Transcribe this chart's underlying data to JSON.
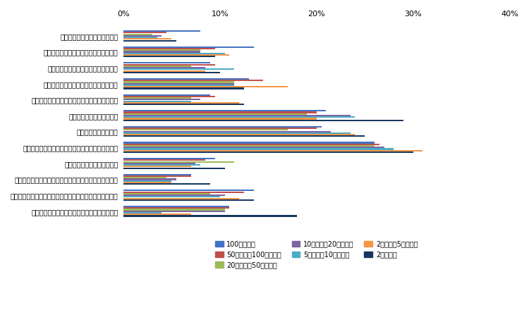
{
  "categories": [
    "助成金や補助金などの財源獲得",
    "モデル事業や国家戦略特区などへの採択",
    "事務・事業の再編・整理、廃止・統合",
    "民間委託の推進や指定管理者制度の活用",
    "業務の見直しや内部管理業務の効率化・集約化",
    "業務量に見合った人員配置",
    "専門人材の育成・配置",
    "公務外人材の活用（中途採用や兼業・副業の活用）",
    "地域住民や民間企業との連携",
    "業務のデジタル化（ペーパーレス化、クラウド化など）",
    "テクノロジーの活用（市販サービス・アプリの活用など）",
    "行政が取得している／取得できるデータの活用"
  ],
  "series": {
    "100万人以上": [
      8.0,
      13.5,
      9.0,
      13.0,
      9.0,
      21.0,
      20.5,
      26.0,
      9.5,
      7.0,
      13.5,
      11.0
    ],
    "50万人以上100万人未満": [
      4.5,
      9.5,
      9.5,
      14.5,
      9.5,
      20.0,
      20.0,
      26.5,
      8.5,
      7.0,
      12.5,
      11.0
    ],
    "20万人以上50万人未満": [
      3.0,
      8.0,
      7.0,
      11.5,
      7.0,
      19.0,
      17.0,
      26.0,
      11.5,
      4.5,
      9.0,
      10.5
    ],
    "10万人以上20万人未満": [
      4.0,
      8.0,
      8.5,
      11.5,
      8.0,
      23.5,
      21.5,
      27.0,
      7.5,
      5.5,
      10.5,
      10.5
    ],
    "5万人以上10万人未満": [
      3.5,
      10.5,
      11.5,
      11.5,
      7.0,
      24.0,
      23.5,
      28.0,
      8.0,
      5.0,
      10.0,
      4.0
    ],
    "2万人以上5万人未満": [
      5.0,
      11.0,
      8.5,
      17.0,
      12.0,
      20.0,
      24.0,
      31.0,
      7.0,
      5.0,
      12.0,
      7.0
    ],
    "2万人未満": [
      5.5,
      9.5,
      10.0,
      12.5,
      12.5,
      29.0,
      25.0,
      30.0,
      10.5,
      9.0,
      13.5,
      18.0
    ]
  },
  "colors": {
    "100万人以上": "#4472C4",
    "50万人以上100万人未満": "#C0504D",
    "20万人以上50万人未満": "#9BBB59",
    "10万人以上20万人未満": "#8064A2",
    "5万人以上10万人未満": "#4BACC6",
    "2万人以上5万人未満": "#F79646",
    "2万人未満": "#17375E"
  },
  "xlim": [
    0,
    40
  ],
  "xtick_labels": [
    "0%",
    "10%",
    "20%",
    "30%",
    "40%"
  ],
  "xtick_values": [
    0,
    10,
    20,
    30,
    40
  ]
}
